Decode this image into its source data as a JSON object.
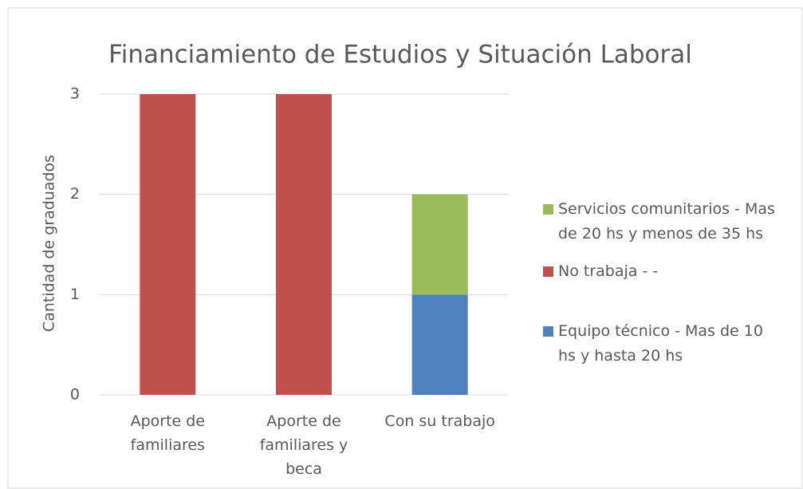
{
  "chart_data": {
    "type": "stacked_bar",
    "title": "Financiamiento de Estudios y Situación Laboral",
    "y_label": "Cantidad de graduados",
    "categories": [
      "Aporte de familiares",
      "Aporte de familiares y beca",
      "Con su trabajo"
    ],
    "series": [
      {
        "name": "Equipo técnico - Mas de 10 hs y hasta 20 hs",
        "color": "#4f81bd",
        "values": [
          0,
          0,
          1
        ]
      },
      {
        "name": "No trabaja - -",
        "color": "#c0504d",
        "values": [
          3,
          3,
          0
        ]
      },
      {
        "name": "Servicios comunitarios - Mas de 20 hs y menos de 35 hs",
        "color": "#9bbb59",
        "values": [
          0,
          0,
          1
        ]
      }
    ],
    "ylim": [
      0,
      3
    ],
    "yticks": [
      0,
      1,
      2,
      3
    ],
    "grid": true,
    "legend": "right"
  }
}
